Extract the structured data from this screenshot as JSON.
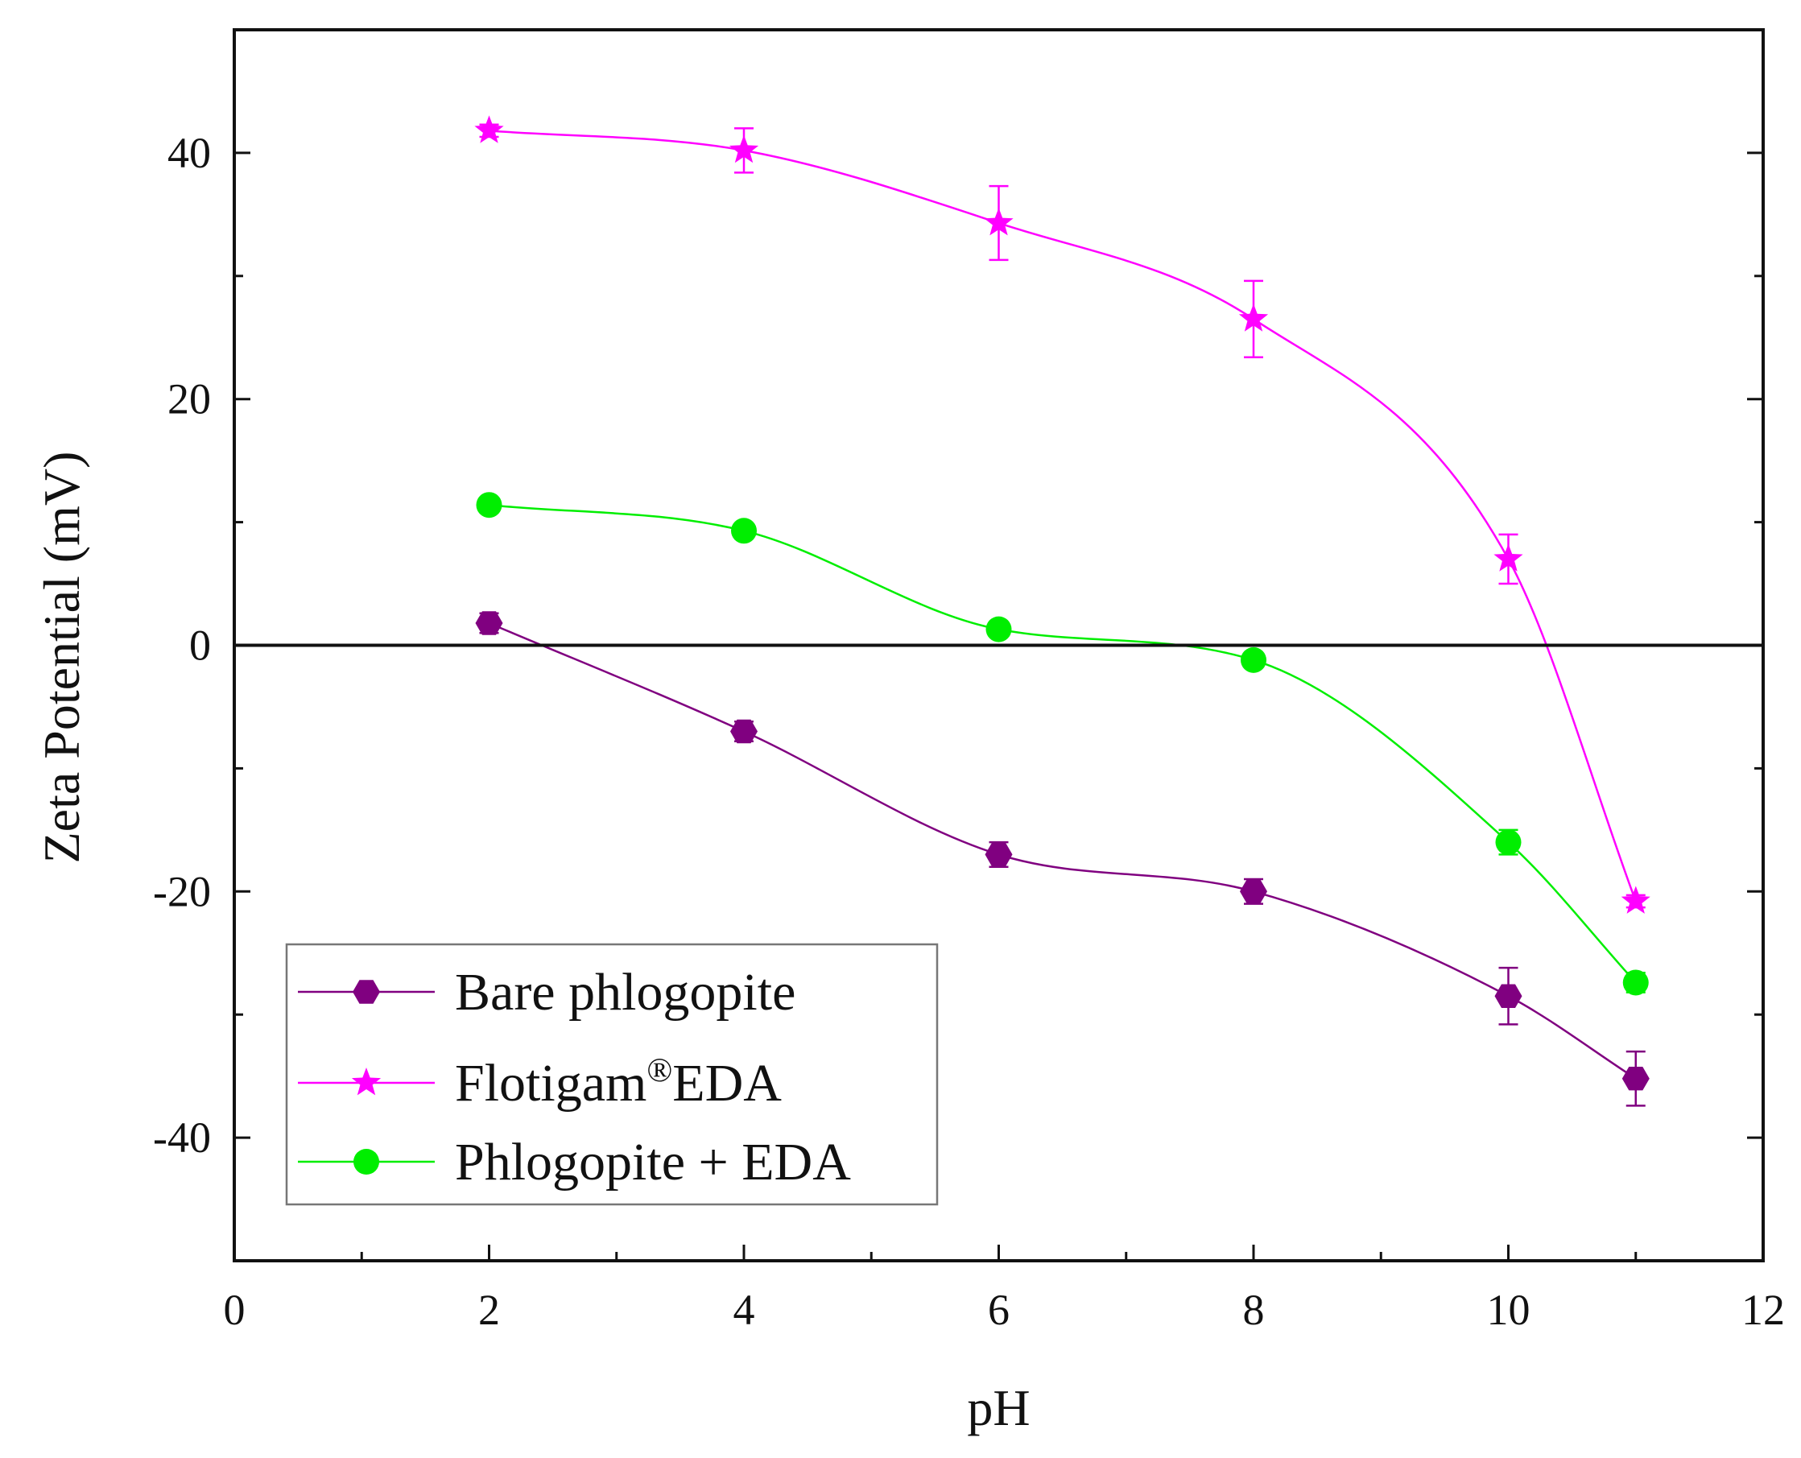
{
  "chart_data": {
    "type": "line",
    "xlabel": "pH",
    "ylabel": "Zeta Potential (mV)",
    "xlim": [
      0,
      12
    ],
    "ylim": [
      -50,
      50
    ],
    "x_major_ticks": [
      0,
      2,
      4,
      6,
      8,
      10,
      12
    ],
    "x_minor_ticks": [
      1,
      3,
      5,
      7,
      9,
      11
    ],
    "y_major_ticks": [
      -40,
      -20,
      0,
      20,
      40
    ],
    "y_minor_ticks": [
      -30,
      -10,
      10,
      30
    ],
    "x_tick_labels": [
      "0",
      "2",
      "4",
      "6",
      "8",
      "10",
      "12"
    ],
    "y_tick_labels": [
      "-40",
      "-20",
      "0",
      "20",
      "40"
    ],
    "zero_line": 0,
    "legend_position": "bottom-left",
    "series": [
      {
        "name": "Bare phlogopite",
        "marker": "hexagon",
        "color": "#800080",
        "x": [
          2,
          4,
          6,
          8,
          10,
          11
        ],
        "y": [
          1.8,
          -7,
          -17,
          -20,
          -28.5,
          -35.2
        ],
        "error": [
          0.8,
          0.8,
          1.0,
          1.0,
          2.3,
          2.2
        ]
      },
      {
        "name": "Flotigam",
        "name_superscript": "®",
        "name_suffix": "EDA",
        "marker": "star",
        "color": "#ff00ff",
        "x": [
          2,
          4,
          6,
          8,
          10,
          11
        ],
        "y": [
          41.8,
          40.2,
          34.3,
          26.5,
          7,
          -20.8
        ],
        "error": [
          0.5,
          1.8,
          3.0,
          3.1,
          2.0,
          0.5
        ]
      },
      {
        "name": "Phlogopite + EDA",
        "marker": "circle",
        "color": "#00ee00",
        "x": [
          2,
          4,
          6,
          8,
          10,
          11
        ],
        "y": [
          11.4,
          9.3,
          1.3,
          -1.2,
          -16,
          -27.4
        ],
        "error": [
          0.6,
          0.6,
          0.6,
          0.6,
          1.0,
          0.8
        ]
      }
    ]
  }
}
